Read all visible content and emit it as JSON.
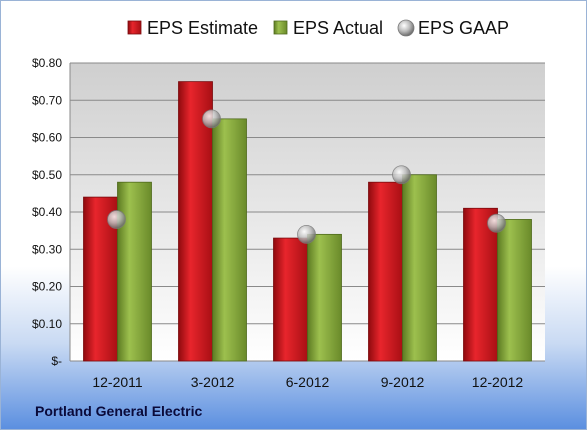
{
  "company": "Portland General Electric",
  "colors": {
    "estimate": "#d4141c",
    "actual": "#86a93c",
    "gaap": "#c8c8c8"
  },
  "chart_data": {
    "type": "bar",
    "categories": [
      "12-2011",
      "3-2012",
      "6-2012",
      "9-2012",
      "12-2012"
    ],
    "series": [
      {
        "name": "EPS Estimate",
        "type": "bar",
        "values": [
          0.44,
          0.75,
          0.33,
          0.48,
          0.41
        ]
      },
      {
        "name": "EPS Actual",
        "type": "bar",
        "values": [
          0.48,
          0.65,
          0.34,
          0.5,
          0.38
        ]
      },
      {
        "name": "EPS GAAP",
        "type": "scatter",
        "values": [
          0.38,
          0.65,
          0.34,
          0.5,
          0.37
        ]
      }
    ],
    "ylim": [
      0,
      0.8
    ],
    "yticks": [
      0,
      0.1,
      0.2,
      0.3,
      0.4,
      0.5,
      0.6,
      0.7,
      0.8
    ],
    "ytick_labels": [
      "$-",
      "$0.10",
      "$0.20",
      "$0.30",
      "$0.40",
      "$0.50",
      "$0.60",
      "$0.70",
      "$0.80"
    ],
    "legend_position": "top",
    "grid": true
  }
}
